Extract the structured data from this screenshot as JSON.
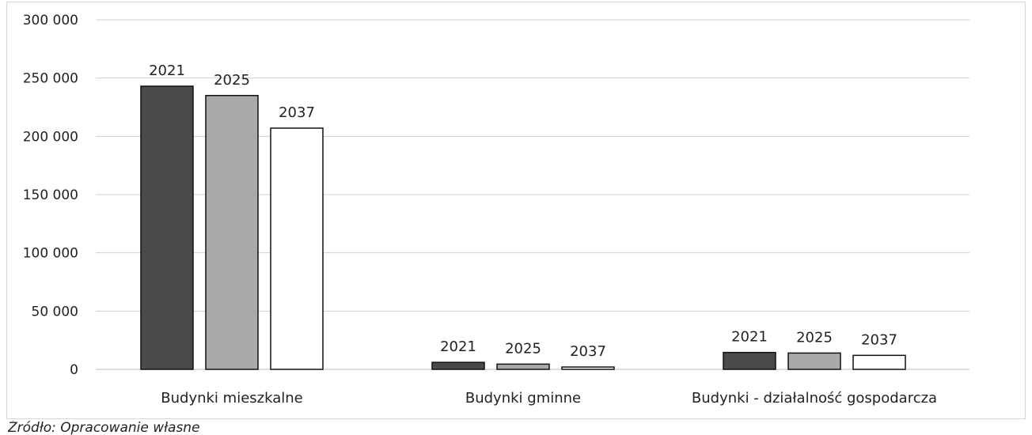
{
  "chart_data": {
    "type": "bar",
    "title": "",
    "xlabel": "",
    "ylabel": "",
    "categories": [
      "Budynki mieszkalne",
      "Budynki gminne",
      "Budynki - działalność gospodarcza"
    ],
    "series": [
      {
        "name": "2021",
        "values": [
          243000,
          6000,
          14500
        ],
        "color": "#4a4a4a"
      },
      {
        "name": "2025",
        "values": [
          235000,
          4500,
          14000
        ],
        "color": "#a9a9a9"
      },
      {
        "name": "2037",
        "values": [
          207000,
          2000,
          12000
        ],
        "color": "#ffffff"
      }
    ],
    "ylim": [
      0,
      300000
    ],
    "yticks": [
      0,
      50000,
      100000,
      150000,
      200000,
      250000,
      300000
    ],
    "ytick_labels": [
      "0",
      "50 000",
      "100 000",
      "150 000",
      "200 000",
      "250 000",
      "300 000"
    ],
    "grid": true,
    "legend": "none (series names shown as data labels above bars)"
  },
  "source_note": "Źródło: Opracowanie własne"
}
